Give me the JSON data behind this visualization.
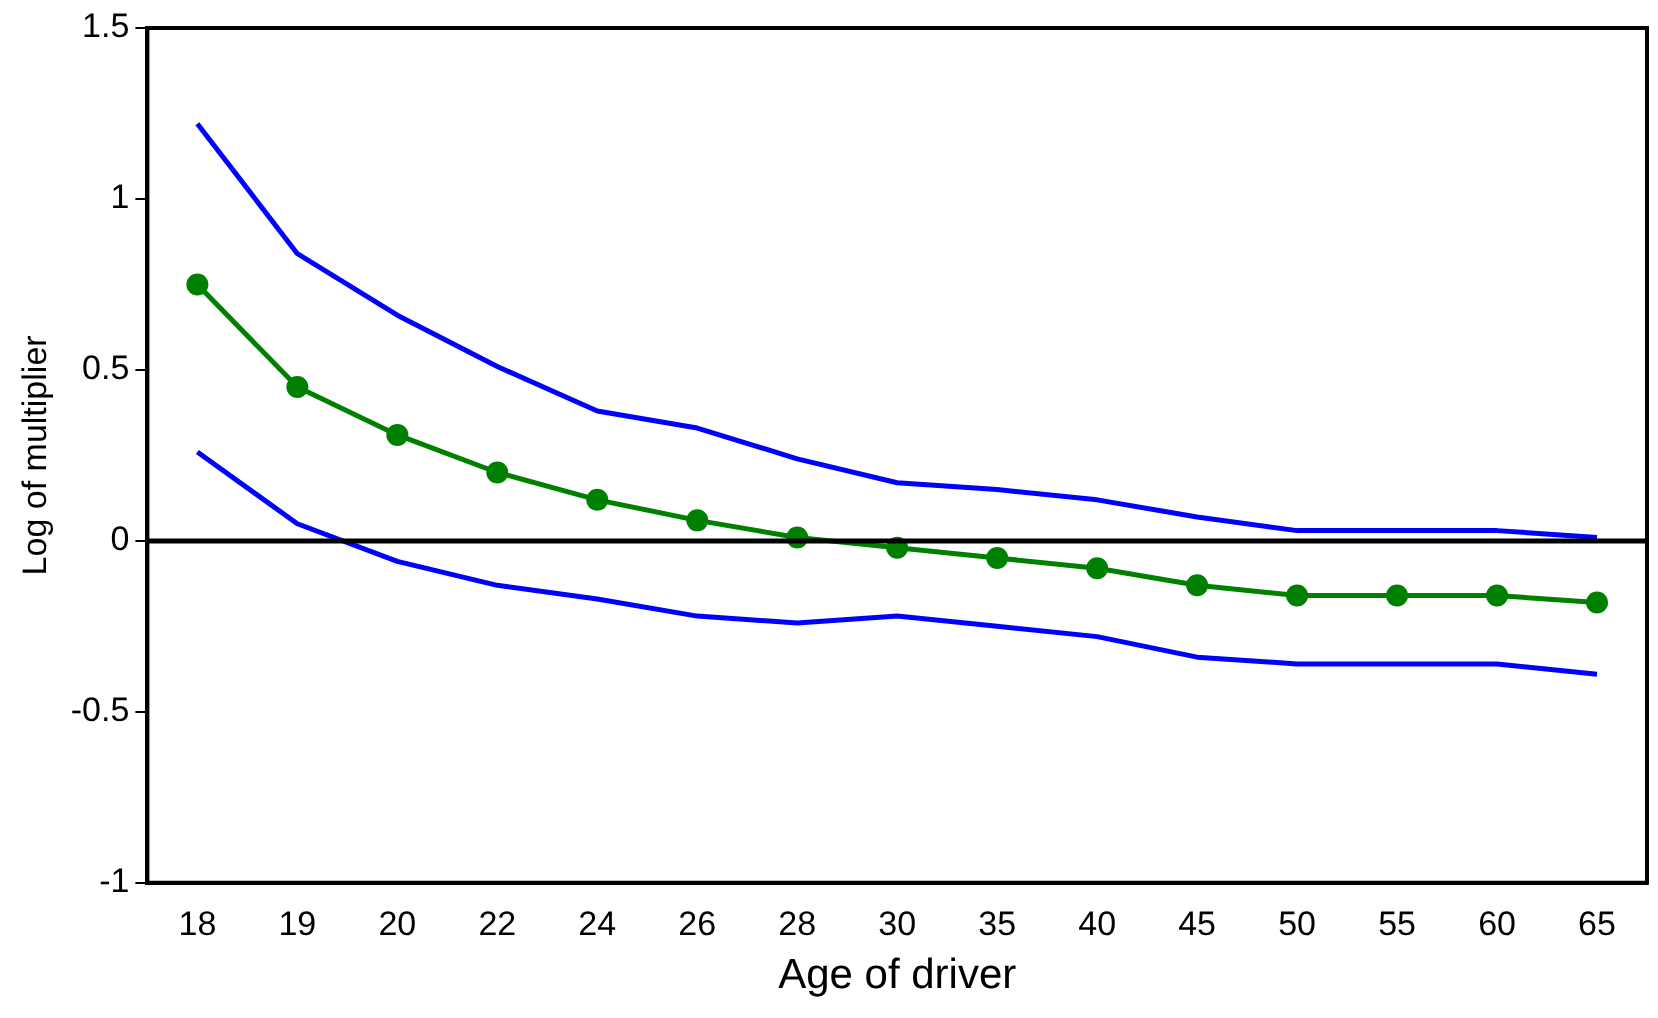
{
  "chart_data": {
    "type": "line",
    "xlabel": "Age of driver",
    "ylabel": "Log of multiplier",
    "categories": [
      "18",
      "19",
      "20",
      "22",
      "24",
      "26",
      "28",
      "30",
      "35",
      "40",
      "45",
      "50",
      "55",
      "60",
      "65"
    ],
    "series": [
      {
        "color": "#0000ff",
        "marker": "none",
        "values": [
          1.22,
          0.84,
          0.66,
          0.51,
          0.38,
          0.33,
          0.24,
          0.17,
          0.15,
          0.12,
          0.07,
          0.03,
          0.03,
          0.03,
          0.01
        ]
      },
      {
        "color": "#008000",
        "marker": "circle",
        "values": [
          0.75,
          0.45,
          0.31,
          0.2,
          0.12,
          0.06,
          0.01,
          -0.02,
          -0.05,
          -0.08,
          -0.13,
          -0.16,
          -0.16,
          -0.16,
          -0.18
        ]
      },
      {
        "color": "#0000ff",
        "marker": "none",
        "values": [
          0.26,
          0.05,
          -0.06,
          -0.13,
          -0.17,
          -0.22,
          -0.24,
          -0.22,
          -0.25,
          -0.28,
          -0.34,
          -0.36,
          -0.36,
          -0.36,
          -0.39
        ]
      }
    ],
    "ylim": [
      -1,
      1.5
    ],
    "yticks": [
      -1,
      -0.5,
      0,
      0.5,
      1,
      1.5
    ],
    "ref_lines": [
      {
        "axis": "y",
        "value": 0,
        "color": "#000000"
      }
    ],
    "grid": false,
    "legend": false
  }
}
